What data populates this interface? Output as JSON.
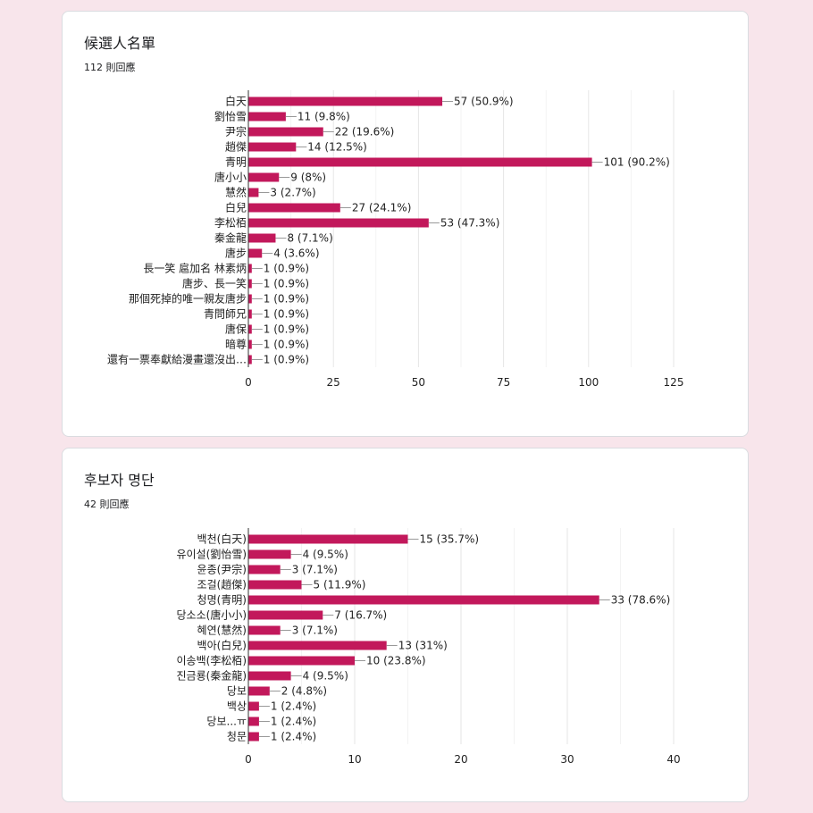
{
  "cards": [
    {
      "title": "候選人名單",
      "responses": "112 則回應",
      "chart_data": {
        "type": "bar",
        "orientation": "horizontal",
        "title": "",
        "xlabel": "",
        "ylabel": "",
        "xlim": [
          0,
          125
        ],
        "xticks": [
          0,
          25,
          50,
          75,
          100,
          125
        ],
        "grid": true,
        "bar_color": "#c2185b",
        "categories": [
          "白天",
          "劉怡雪",
          "尹宗",
          "趙傑",
          "青明",
          "唐小小",
          "慧然",
          "白兒",
          "李松栢",
          "秦金龍",
          "唐步",
          "長一笑 扈加名 林素炳",
          "唐步、長一笑",
          "那個死掉的唯一親友唐步",
          "青問師兄",
          "唐保",
          "暗尊",
          "還有一票奉獻給漫畫還沒出…"
        ],
        "values": [
          57,
          11,
          22,
          14,
          101,
          9,
          3,
          27,
          53,
          8,
          4,
          1,
          1,
          1,
          1,
          1,
          1,
          1
        ],
        "data_labels": [
          "57 (50.9%)",
          "11 (9.8%)",
          "22 (19.6%)",
          "14 (12.5%)",
          "101 (90.2%)",
          "9 (8%)",
          "3 (2.7%)",
          "27 (24.1%)",
          "53 (47.3%)",
          "8 (7.1%)",
          "4 (3.6%)",
          "1 (0.9%)",
          "1 (0.9%)",
          "1 (0.9%)",
          "1 (0.9%)",
          "1 (0.9%)",
          "1 (0.9%)",
          "1 (0.9%)"
        ]
      }
    },
    {
      "title": "후보자 명단",
      "responses": "42 則回應",
      "chart_data": {
        "type": "bar",
        "orientation": "horizontal",
        "title": "",
        "xlabel": "",
        "ylabel": "",
        "xlim": [
          0,
          40
        ],
        "xticks": [
          0,
          10,
          20,
          30,
          40
        ],
        "grid": true,
        "bar_color": "#c2185b",
        "categories": [
          "백천(白天)",
          "유이설(劉怡雪)",
          "윤종(尹宗)",
          "조걸(趙傑)",
          "청명(青明)",
          "당소소(唐小小)",
          "혜연(慧然)",
          "백아(白兒)",
          "이송백(李松栢)",
          "진금룡(秦金龍)",
          "당보",
          "백상",
          "당보...ㅠ",
          "청문"
        ],
        "values": [
          15,
          4,
          3,
          5,
          33,
          7,
          3,
          13,
          10,
          4,
          2,
          1,
          1,
          1
        ],
        "data_labels": [
          "15 (35.7%)",
          "4 (9.5%)",
          "3 (7.1%)",
          "5 (11.9%)",
          "33 (78.6%)",
          "7 (16.7%)",
          "3 (7.1%)",
          "13 (31%)",
          "10 (23.8%)",
          "4 (9.5%)",
          "2 (4.8%)",
          "1 (2.4%)",
          "1 (2.4%)",
          "1 (2.4%)"
        ]
      }
    }
  ]
}
